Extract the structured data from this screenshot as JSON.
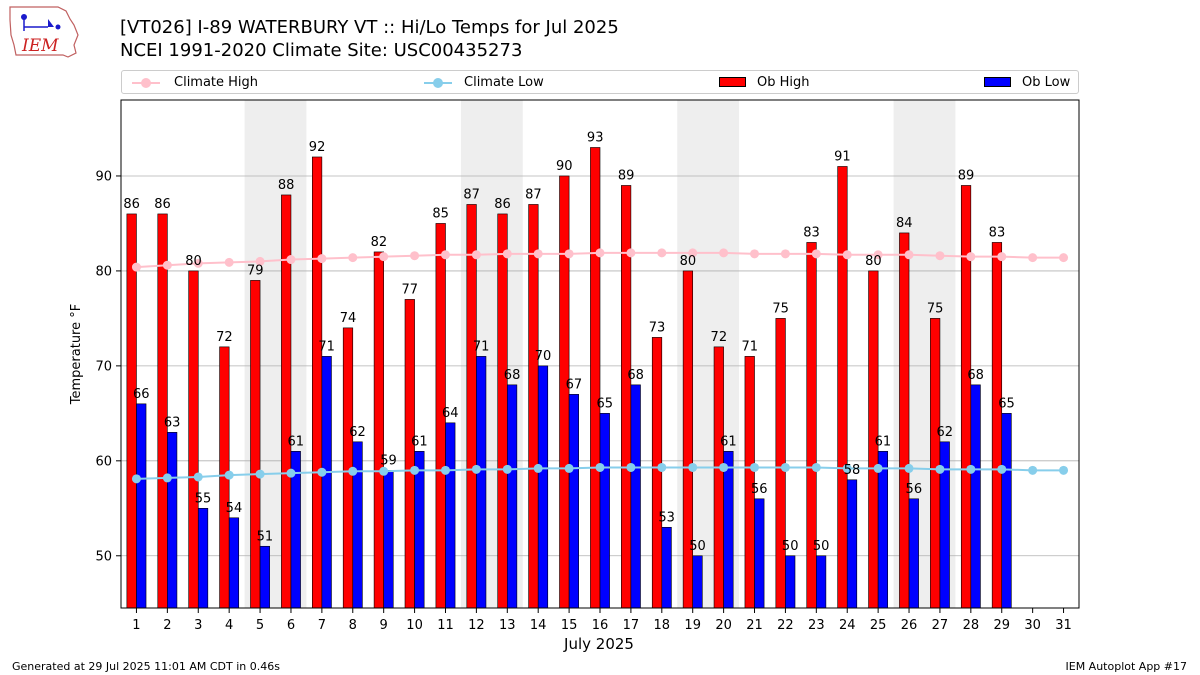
{
  "header": {
    "logo_text": "IEM",
    "title_line1": "[VT026] I-89 WATERBURY  VT :: Hi/Lo Temps for Jul 2025",
    "title_line2": "NCEI 1991-2020 Climate Site: USC00435273"
  },
  "footer": {
    "generated": "Generated at 29 Jul 2025 11:01 AM CDT in 0.46s",
    "app": "IEM Autoplot App #17"
  },
  "colors": {
    "ob_high": "#ff0000",
    "ob_low": "#0000ff",
    "climate_high": "#ffc0cb",
    "climate_low": "#87ceeb",
    "weekend_shade": "#eeeeee",
    "grid": "#b0b0b0"
  },
  "chart_data": {
    "type": "bar",
    "xlabel": "July 2025",
    "ylabel": "Temperature °F",
    "ylim": [
      44.5,
      98
    ],
    "yticks": [
      50,
      60,
      70,
      80,
      90
    ],
    "grid": "horizontal",
    "legend_placement": "top",
    "categories": [
      "1",
      "2",
      "3",
      "4",
      "5",
      "6",
      "7",
      "8",
      "9",
      "10",
      "11",
      "12",
      "13",
      "14",
      "15",
      "16",
      "17",
      "18",
      "19",
      "20",
      "21",
      "22",
      "23",
      "24",
      "25",
      "26",
      "27",
      "28",
      "29",
      "30",
      "31"
    ],
    "shaded_days": [
      [
        5,
        6
      ],
      [
        12,
        13
      ],
      [
        19,
        20
      ],
      [
        26,
        27
      ]
    ],
    "series": [
      {
        "name": "Climate High",
        "kind": "line",
        "values": [
          80.4,
          80.6,
          80.8,
          80.9,
          81.0,
          81.2,
          81.3,
          81.4,
          81.5,
          81.6,
          81.7,
          81.7,
          81.8,
          81.8,
          81.8,
          81.9,
          81.9,
          81.9,
          81.9,
          81.9,
          81.8,
          81.8,
          81.8,
          81.7,
          81.7,
          81.7,
          81.6,
          81.5,
          81.5,
          81.4,
          81.4
        ]
      },
      {
        "name": "Climate Low",
        "kind": "line",
        "values": [
          58.1,
          58.2,
          58.3,
          58.5,
          58.6,
          58.7,
          58.8,
          58.9,
          58.9,
          59.0,
          59.0,
          59.1,
          59.1,
          59.2,
          59.2,
          59.3,
          59.3,
          59.3,
          59.3,
          59.3,
          59.3,
          59.3,
          59.3,
          59.2,
          59.2,
          59.2,
          59.1,
          59.1,
          59.1,
          59.0,
          59.0
        ]
      },
      {
        "name": "Ob High",
        "kind": "bar",
        "values": [
          86,
          86,
          80,
          72,
          79,
          88,
          92,
          74,
          82,
          77,
          85,
          87,
          86,
          87,
          90,
          93,
          89,
          73,
          80,
          72,
          71,
          75,
          83,
          91,
          80,
          84,
          75,
          89,
          83,
          null,
          null
        ]
      },
      {
        "name": "Ob Low",
        "kind": "bar",
        "values": [
          66,
          63,
          55,
          54,
          51,
          61,
          71,
          62,
          59,
          61,
          64,
          71,
          68,
          70,
          67,
          65,
          68,
          53,
          50,
          61,
          56,
          50,
          50,
          58,
          61,
          56,
          62,
          68,
          65,
          null,
          null
        ]
      }
    ]
  }
}
